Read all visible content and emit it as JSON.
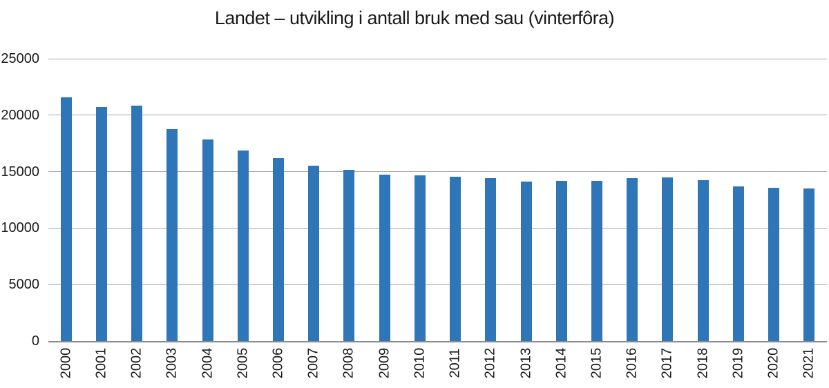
{
  "chart_data": {
    "type": "bar",
    "title": "Landet – utvikling i antall bruk med sau (vinterfôra)",
    "categories": [
      "2000",
      "2001",
      "2002",
      "2003",
      "2004",
      "2005",
      "2006",
      "2007",
      "2008",
      "2009",
      "2010",
      "2011",
      "2012",
      "2013",
      "2014",
      "2015",
      "2016",
      "2017",
      "2018",
      "2019",
      "2020",
      "2021"
    ],
    "values": [
      21550,
      20750,
      20850,
      18750,
      17850,
      16900,
      16200,
      15500,
      15150,
      14750,
      14700,
      14550,
      14400,
      14100,
      14200,
      14200,
      14400,
      14500,
      14250,
      13700,
      13550,
      13500
    ],
    "xlabel": "",
    "ylabel": "",
    "ylim": [
      0,
      25000
    ],
    "yticks": [
      0,
      5000,
      10000,
      15000,
      20000,
      25000
    ],
    "grid": true,
    "legend_position": "none",
    "x_label_rotation_deg": -90,
    "bar_color": "#2e76b8",
    "gridline_color": "#a6a6a6",
    "axis_line_color": "#8c8c8c",
    "text_color": "#1a1a1a"
  }
}
